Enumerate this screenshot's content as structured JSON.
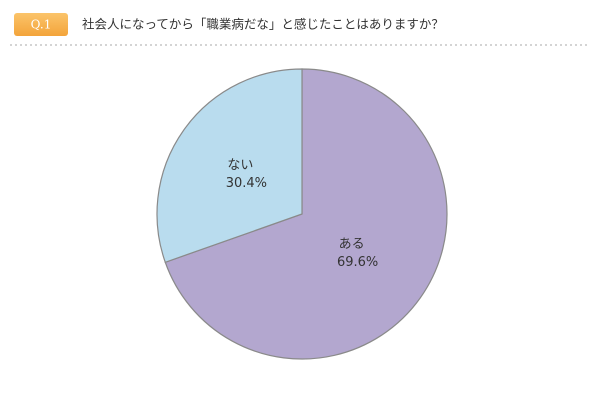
{
  "chart_data": {
    "type": "pie",
    "badge": "Q.1",
    "title": "社会人になってから「職業病だな」と感じたことはありますか？",
    "categories": [
      "ある",
      "ない"
    ],
    "values": [
      69.6,
      30.4
    ],
    "value_labels": [
      "69.6%",
      "30.4%"
    ],
    "colors": [
      "#b3a7cf",
      "#b9dcee"
    ]
  }
}
